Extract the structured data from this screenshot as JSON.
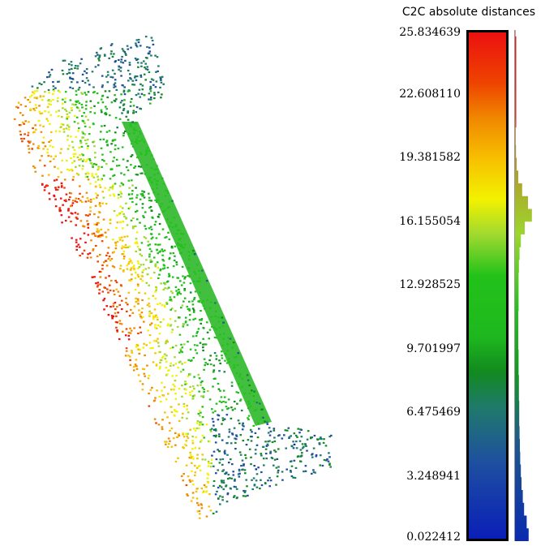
{
  "scale": {
    "title": "C2C absolute distances",
    "min": 0.022412,
    "max": 25.834639,
    "ticks": [
      "25.834639",
      "22.608110",
      "19.381582",
      "16.155054",
      "12.928525",
      "9.701997",
      "6.475469",
      "3.248941",
      "0.022412"
    ],
    "colormap": [
      "#0a1fb8",
      "#1e4fa0",
      "#1f7a6a",
      "#128a1f",
      "#1eb81e",
      "#23c21a",
      "#9fd930",
      "#f2f200",
      "#f7c000",
      "#f08800",
      "#ee4400",
      "#ec1010"
    ]
  },
  "histogram": {
    "color": "#0a8a0a",
    "bins_low_to_high": [
      0.42,
      0.36,
      0.28,
      0.24,
      0.2,
      0.18,
      0.16,
      0.15,
      0.14,
      0.13,
      0.13,
      0.12,
      0.12,
      0.11,
      0.11,
      0.1,
      0.1,
      0.1,
      0.11,
      0.11,
      0.11,
      0.12,
      0.14,
      0.18,
      0.3,
      0.52,
      0.4,
      0.22,
      0.1,
      0.05,
      0.03,
      0.02,
      0.02,
      0.01,
      0.01,
      0.01,
      0.01,
      0.01,
      0.01,
      0.01
    ]
  }
}
